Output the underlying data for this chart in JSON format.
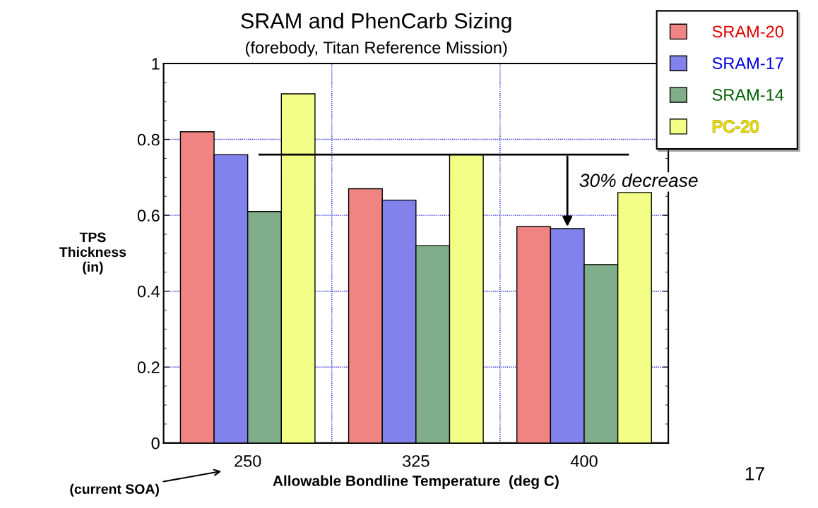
{
  "chart_data": {
    "type": "bar",
    "title": "SRAM and PhenCarb Sizing",
    "subtitle": "(forebody, Titan Reference Mission)",
    "xlabel": "Allowable Bondline Temperature  (deg C)",
    "ylabel": "TPS\nThickness\n(in)",
    "categories": [
      "250",
      "325",
      "400"
    ],
    "series": [
      {
        "name": "SRAM-20",
        "color": "#f08482",
        "values": [
          0.82,
          0.67,
          0.57
        ]
      },
      {
        "name": "SRAM-17",
        "color": "#8282ec",
        "values": [
          0.76,
          0.64,
          0.565
        ]
      },
      {
        "name": "SRAM-14",
        "color": "#80ae8a",
        "values": [
          0.61,
          0.52,
          0.47
        ]
      },
      {
        "name": "PC-20",
        "color": "#f2fe86",
        "values": [
          0.92,
          0.76,
          0.66
        ]
      }
    ],
    "ylim": [
      0,
      1
    ],
    "yticks": [
      0,
      0.2,
      0.4,
      0.6,
      0.8,
      1
    ],
    "ref_lines": [
      {
        "axis": "y",
        "value": 0.76,
        "color": "#000000"
      }
    ],
    "annotations": [
      {
        "text": "30% decrease",
        "x": "400",
        "y": 0.565
      },
      "(current SOA)",
      "17"
    ],
    "grid": true,
    "legend": "top right"
  }
}
